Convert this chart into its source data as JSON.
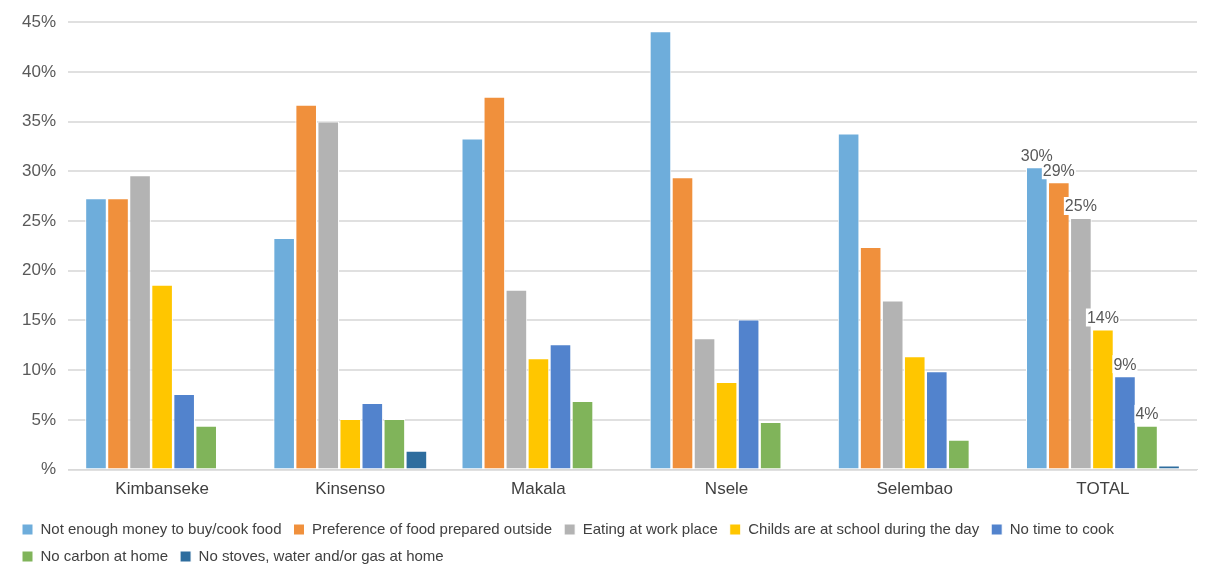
{
  "chart_data": {
    "type": "bar",
    "categories": [
      "Kimbanseke",
      "Kinsenso",
      "Makala",
      "Nsele",
      "Selembao",
      "TOTAL"
    ],
    "series": [
      {
        "name": "Not enough money to buy/cook food",
        "color": "#6eaddb",
        "values": [
          27.3,
          23.3,
          33.3,
          44.1,
          33.8,
          30.4
        ],
        "value_labels": [
          null,
          null,
          null,
          null,
          null,
          "30%"
        ]
      },
      {
        "name": "Preference of food prepared outside",
        "color": "#f0903c",
        "values": [
          27.3,
          36.7,
          37.5,
          29.4,
          22.4,
          28.9
        ],
        "value_labels": [
          null,
          null,
          null,
          null,
          null,
          "29%"
        ]
      },
      {
        "name": "Eating at work place",
        "color": "#b3b3b3",
        "values": [
          29.6,
          35.0,
          18.1,
          13.2,
          17.0,
          25.3
        ],
        "value_labels": [
          null,
          null,
          null,
          null,
          null,
          "25%"
        ]
      },
      {
        "name": "Childs are at school during the day",
        "color": "#ffc600",
        "values": [
          18.6,
          5.1,
          11.2,
          8.8,
          11.4,
          14.1
        ],
        "value_labels": [
          null,
          null,
          null,
          null,
          null,
          "14%"
        ]
      },
      {
        "name": "No time to cook",
        "color": "#5283cd",
        "values": [
          7.6,
          6.7,
          12.6,
          15.1,
          9.9,
          9.4
        ],
        "value_labels": [
          null,
          null,
          null,
          null,
          null,
          "9%"
        ]
      },
      {
        "name": "No carbon at home",
        "color": "#80b45a",
        "values": [
          4.4,
          5.1,
          6.9,
          4.8,
          3.0,
          4.4
        ],
        "value_labels": [
          null,
          null,
          null,
          null,
          null,
          "4%"
        ]
      },
      {
        "name": "No stoves, water and/or gas at home",
        "color": "#2e6d9e",
        "values": [
          null,
          1.9,
          null,
          null,
          null,
          0.4
        ]
      }
    ],
    "ylim": [
      0,
      45
    ],
    "yticks": [
      {
        "value": 0,
        "label": "%"
      },
      {
        "value": 5,
        "label": "5%"
      },
      {
        "value": 10,
        "label": "10%"
      },
      {
        "value": 15,
        "label": "15%"
      },
      {
        "value": 20,
        "label": "20%"
      },
      {
        "value": 25,
        "label": "25%"
      },
      {
        "value": 30,
        "label": "30%"
      },
      {
        "value": 35,
        "label": "35%"
      },
      {
        "value": 40,
        "label": "40%"
      },
      {
        "value": 45,
        "label": "45%"
      }
    ],
    "grid": "y",
    "legend": "bottom"
  }
}
